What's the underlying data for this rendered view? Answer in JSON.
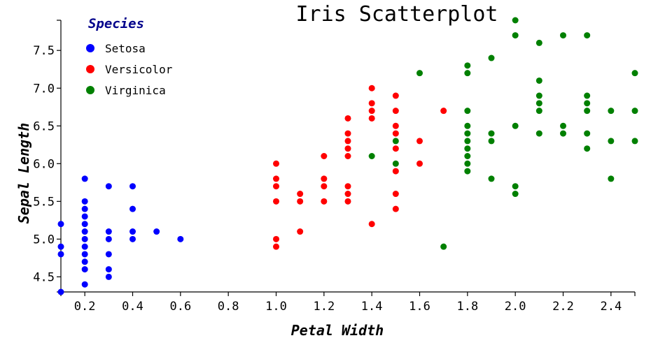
{
  "chart_data": {
    "type": "scatter",
    "title": "Iris Scatterplot",
    "xlabel": "Petal Width",
    "ylabel": "Sepal Length",
    "xlim": [
      0.1,
      2.5
    ],
    "ylim": [
      4.3,
      7.9
    ],
    "xticks": [
      "0.2",
      "0.4",
      "0.6",
      "0.8",
      "1.0",
      "1.2",
      "1.4",
      "1.6",
      "1.8",
      "2.0",
      "2.2",
      "2.4"
    ],
    "yticks": [
      "4.5",
      "5.0",
      "5.5",
      "6.0",
      "6.5",
      "7.0",
      "7.5"
    ],
    "grid": false,
    "legend": {
      "title": "Species",
      "title_color": "#00008b",
      "placement": "top-left"
    },
    "series": [
      {
        "name": "Setosa",
        "color": "#0000ff",
        "points": [
          [
            0.1,
            5.2
          ],
          [
            0.1,
            4.9
          ],
          [
            0.1,
            4.8
          ],
          [
            0.1,
            4.3
          ],
          [
            0.2,
            5.8
          ],
          [
            0.2,
            5.5
          ],
          [
            0.2,
            5.4
          ],
          [
            0.2,
            5.3
          ],
          [
            0.2,
            5.2
          ],
          [
            0.2,
            5.1
          ],
          [
            0.2,
            5.0
          ],
          [
            0.2,
            4.9
          ],
          [
            0.2,
            4.8
          ],
          [
            0.2,
            4.7
          ],
          [
            0.2,
            4.6
          ],
          [
            0.2,
            4.4
          ],
          [
            0.3,
            5.7
          ],
          [
            0.3,
            5.1
          ],
          [
            0.3,
            5.0
          ],
          [
            0.3,
            4.8
          ],
          [
            0.3,
            4.6
          ],
          [
            0.3,
            4.5
          ],
          [
            0.4,
            5.7
          ],
          [
            0.4,
            5.4
          ],
          [
            0.4,
            5.1
          ],
          [
            0.4,
            5.0
          ],
          [
            0.5,
            5.1
          ],
          [
            0.6,
            5.0
          ]
        ]
      },
      {
        "name": "Versicolor",
        "color": "#ff0000",
        "points": [
          [
            1.0,
            6.0
          ],
          [
            1.0,
            5.8
          ],
          [
            1.0,
            5.7
          ],
          [
            1.0,
            5.5
          ],
          [
            1.0,
            5.0
          ],
          [
            1.0,
            4.9
          ],
          [
            1.1,
            5.6
          ],
          [
            1.1,
            5.5
          ],
          [
            1.1,
            5.1
          ],
          [
            1.2,
            6.1
          ],
          [
            1.2,
            5.8
          ],
          [
            1.2,
            5.7
          ],
          [
            1.2,
            5.5
          ],
          [
            1.3,
            6.6
          ],
          [
            1.3,
            6.4
          ],
          [
            1.3,
            6.3
          ],
          [
            1.3,
            6.2
          ],
          [
            1.3,
            6.1
          ],
          [
            1.3,
            5.7
          ],
          [
            1.3,
            5.6
          ],
          [
            1.3,
            5.5
          ],
          [
            1.4,
            7.0
          ],
          [
            1.4,
            6.8
          ],
          [
            1.4,
            6.7
          ],
          [
            1.4,
            6.6
          ],
          [
            1.4,
            5.2
          ],
          [
            1.5,
            6.9
          ],
          [
            1.5,
            6.7
          ],
          [
            1.5,
            6.5
          ],
          [
            1.5,
            6.4
          ],
          [
            1.5,
            6.2
          ],
          [
            1.5,
            5.9
          ],
          [
            1.5,
            5.6
          ],
          [
            1.5,
            5.4
          ],
          [
            1.6,
            6.3
          ],
          [
            1.6,
            6.0
          ],
          [
            1.7,
            6.7
          ]
        ]
      },
      {
        "name": "Virginica",
        "color": "#008000",
        "points": [
          [
            1.4,
            6.1
          ],
          [
            1.5,
            6.3
          ],
          [
            1.5,
            6.0
          ],
          [
            1.6,
            7.2
          ],
          [
            1.7,
            4.9
          ],
          [
            1.8,
            7.3
          ],
          [
            1.8,
            7.2
          ],
          [
            1.8,
            6.7
          ],
          [
            1.8,
            6.5
          ],
          [
            1.8,
            6.4
          ],
          [
            1.8,
            6.3
          ],
          [
            1.8,
            6.2
          ],
          [
            1.8,
            6.1
          ],
          [
            1.8,
            6.0
          ],
          [
            1.8,
            5.9
          ],
          [
            1.9,
            7.4
          ],
          [
            1.9,
            6.4
          ],
          [
            1.9,
            6.3
          ],
          [
            1.9,
            5.8
          ],
          [
            2.0,
            7.9
          ],
          [
            2.0,
            7.7
          ],
          [
            2.0,
            6.5
          ],
          [
            2.0,
            5.7
          ],
          [
            2.0,
            5.6
          ],
          [
            2.1,
            7.6
          ],
          [
            2.1,
            7.1
          ],
          [
            2.1,
            6.9
          ],
          [
            2.1,
            6.8
          ],
          [
            2.1,
            6.7
          ],
          [
            2.1,
            6.4
          ],
          [
            2.2,
            7.7
          ],
          [
            2.2,
            6.5
          ],
          [
            2.2,
            6.4
          ],
          [
            2.3,
            7.7
          ],
          [
            2.3,
            6.9
          ],
          [
            2.3,
            6.8
          ],
          [
            2.3,
            6.7
          ],
          [
            2.3,
            6.4
          ],
          [
            2.3,
            6.2
          ],
          [
            2.4,
            6.7
          ],
          [
            2.4,
            6.3
          ],
          [
            2.4,
            5.8
          ],
          [
            2.5,
            7.2
          ],
          [
            2.5,
            6.7
          ],
          [
            2.5,
            6.3
          ]
        ]
      }
    ]
  }
}
